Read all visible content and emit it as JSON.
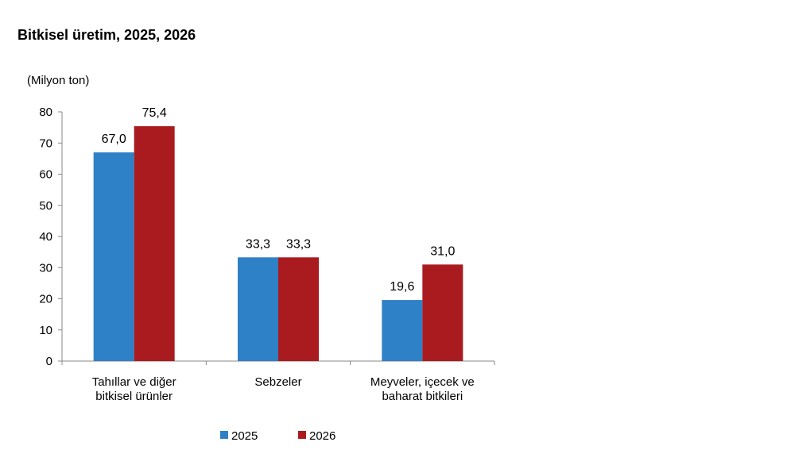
{
  "chart_data": {
    "type": "bar",
    "title": "Bitkisel üretim, 2025, 2026",
    "ylabel": "(Milyon ton)",
    "xlabel": "",
    "ylim": [
      0,
      80
    ],
    "yticks": [
      0,
      10,
      20,
      30,
      40,
      50,
      60,
      70,
      80
    ],
    "categories": [
      [
        "Tahıllar ve diğer",
        "bitkisel ürünler"
      ],
      [
        "Sebzeler"
      ],
      [
        "Meyveler, içecek ve",
        "baharat  bitkileri"
      ]
    ],
    "series": [
      {
        "name": "2025",
        "color": "#2E81C6",
        "values": [
          67.0,
          33.3,
          19.6
        ],
        "labels": [
          "67,0",
          "33,3",
          "19,6"
        ]
      },
      {
        "name": "2026",
        "color": "#A91B1F",
        "values": [
          75.4,
          33.3,
          31.0
        ],
        "labels": [
          "75,4",
          "33,3",
          "31,0"
        ]
      }
    ],
    "legend_position": "bottom",
    "grid": false
  }
}
